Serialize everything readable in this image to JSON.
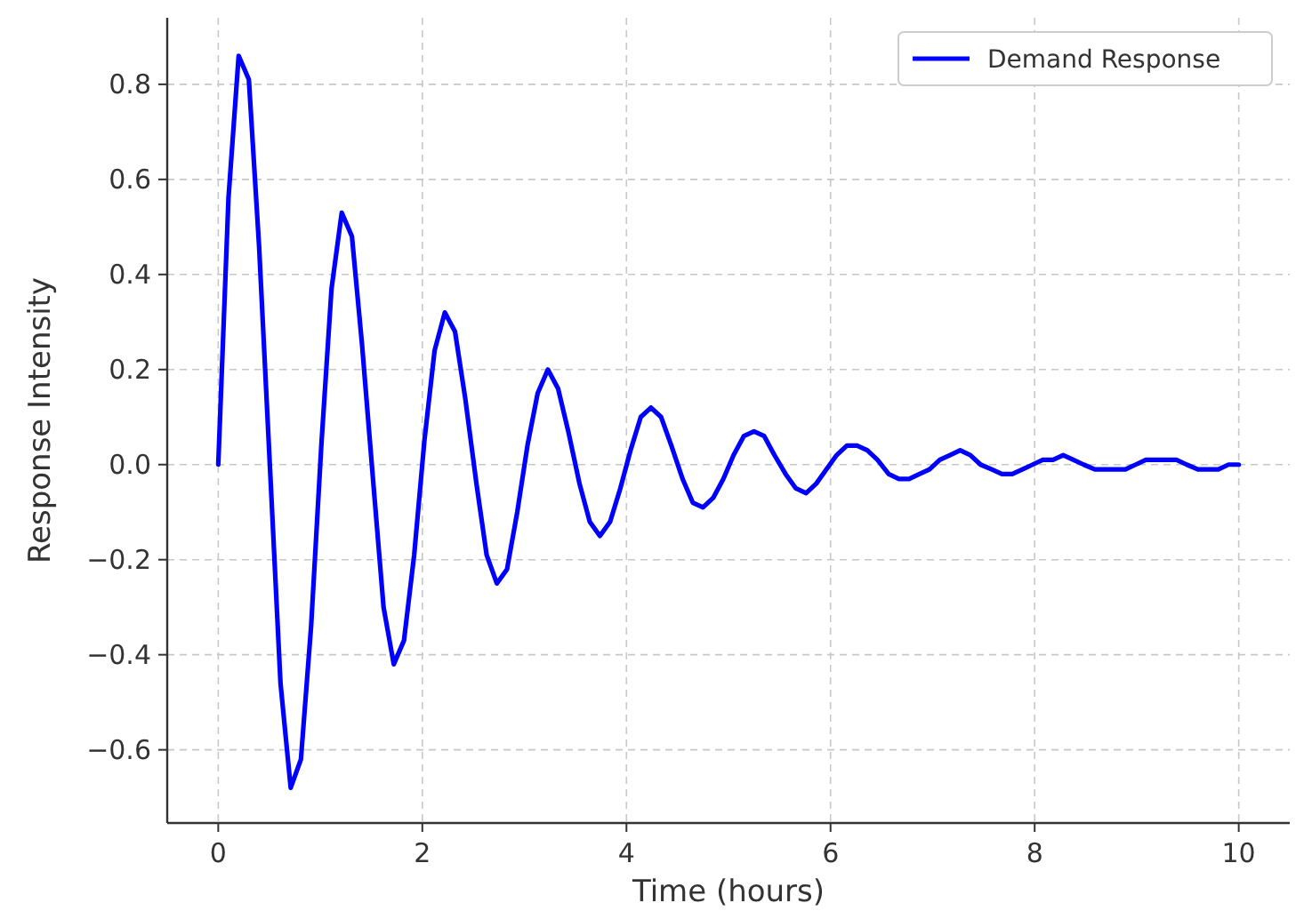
{
  "chart_data": {
    "type": "line",
    "xlabel": "Time (hours)",
    "ylabel": "Response Intensity",
    "x": [
      0,
      0.1,
      0.2,
      0.3,
      0.4,
      0.51,
      0.61,
      0.71,
      0.81,
      0.91,
      1.01,
      1.11,
      1.21,
      1.31,
      1.41,
      1.52,
      1.62,
      1.72,
      1.82,
      1.92,
      2.02,
      2.12,
      2.22,
      2.32,
      2.42,
      2.53,
      2.63,
      2.73,
      2.83,
      2.93,
      3.03,
      3.13,
      3.23,
      3.33,
      3.43,
      3.54,
      3.64,
      3.74,
      3.84,
      3.94,
      4.04,
      4.14,
      4.24,
      4.34,
      4.44,
      4.55,
      4.65,
      4.75,
      4.85,
      4.95,
      5.05,
      5.15,
      5.25,
      5.35,
      5.45,
      5.56,
      5.66,
      5.76,
      5.86,
      5.96,
      6.06,
      6.16,
      6.26,
      6.36,
      6.46,
      6.57,
      6.67,
      6.77,
      6.87,
      6.97,
      7.07,
      7.17,
      7.27,
      7.37,
      7.47,
      7.58,
      7.68,
      7.78,
      7.88,
      7.98,
      8.08,
      8.18,
      8.28,
      8.38,
      8.48,
      8.59,
      8.69,
      8.79,
      8.89,
      8.99,
      9.09,
      9.19,
      9.29,
      9.39,
      9.49,
      9.6,
      9.7,
      9.8,
      9.9,
      10
    ],
    "series": [
      {
        "name": "Demand Response",
        "color": "#0000ff",
        "values": [
          0,
          0.56,
          0.86,
          0.81,
          0.46,
          -0.02,
          -0.46,
          -0.68,
          -0.62,
          -0.34,
          0.04,
          0.37,
          0.53,
          0.48,
          0.25,
          -0.04,
          -0.3,
          -0.42,
          -0.37,
          -0.19,
          0.05,
          0.24,
          0.32,
          0.28,
          0.14,
          -0.04,
          -0.19,
          -0.25,
          -0.22,
          -0.1,
          0.04,
          0.15,
          0.2,
          0.16,
          0.07,
          -0.04,
          -0.12,
          -0.15,
          -0.12,
          -0.05,
          0.03,
          0.1,
          0.12,
          0.1,
          0.04,
          -0.03,
          -0.08,
          -0.09,
          -0.07,
          -0.03,
          0.02,
          0.06,
          0.07,
          0.06,
          0.02,
          -0.02,
          -0.05,
          -0.06,
          -0.04,
          -0.01,
          0.02,
          0.04,
          0.04,
          0.03,
          0.01,
          -0.02,
          -0.03,
          -0.03,
          -0.02,
          -0.01,
          0.01,
          0.02,
          0.03,
          0.02,
          0,
          -0.01,
          -0.02,
          -0.02,
          -0.01,
          0,
          0.01,
          0.01,
          0.02,
          0.01,
          0,
          -0.01,
          -0.01,
          -0.01,
          -0.01,
          0,
          0.01,
          0.01,
          0.01,
          0.01,
          0,
          -0.01,
          -0.01,
          -0.01,
          0,
          0
        ]
      }
    ],
    "xlim": [
      -0.5,
      10.5
    ],
    "xticks": [
      0,
      2,
      4,
      6,
      8,
      10
    ],
    "ylim": [
      -0.754,
      0.94
    ],
    "yticks": [
      {
        "value": -0.6,
        "label": "−0.6"
      },
      {
        "value": -0.4,
        "label": "−0.4"
      },
      {
        "value": -0.2,
        "label": "−0.2"
      },
      {
        "value": 0,
        "label": "0.0"
      },
      {
        "value": 0.2,
        "label": "0.2"
      },
      {
        "value": 0.4,
        "label": "0.4"
      },
      {
        "value": 0.6,
        "label": "0.6"
      },
      {
        "value": 0.8,
        "label": "0.8"
      }
    ],
    "grid": true,
    "legend": "top right",
    "marker": "none",
    "line_style": "solid"
  }
}
